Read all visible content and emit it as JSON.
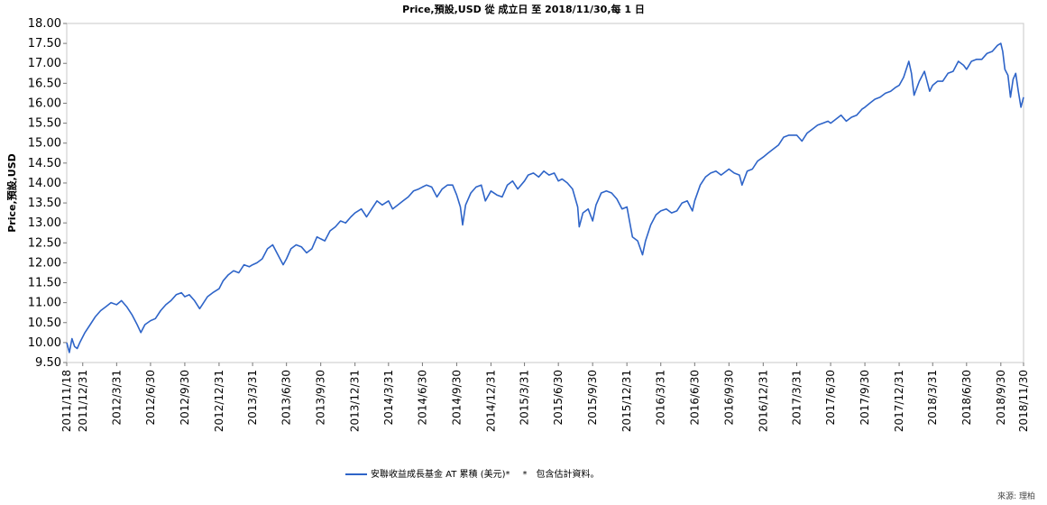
{
  "chart_data": {
    "type": "line",
    "title": "Price,預設,USD 從 成立日 至 2018/11/30,每 1 日",
    "xlabel": "",
    "ylabel": "Price,預設,USD",
    "ylim": [
      9.5,
      18.0
    ],
    "y_ticks": [
      "9.50",
      "10.00",
      "10.50",
      "11.00",
      "11.50",
      "12.00",
      "12.50",
      "13.00",
      "13.50",
      "14.00",
      "14.50",
      "15.00",
      "15.50",
      "16.00",
      "16.50",
      "17.00",
      "17.50",
      "18.00"
    ],
    "x_tick_labels": [
      "2011/11/18",
      "2011/12/31",
      "2012/3/31",
      "2012/6/30",
      "2012/9/30",
      "2012/12/31",
      "2013/3/31",
      "2013/6/30",
      "2013/9/30",
      "2013/12/31",
      "2014/3/31",
      "2014/6/30",
      "2014/9/30",
      "2014/12/31",
      "2015/3/31",
      "2015/6/30",
      "2015/9/30",
      "2015/12/31",
      "2016/3/31",
      "2016/6/30",
      "2016/9/30",
      "2016/12/31",
      "2017/3/31",
      "2017/6/30",
      "2017/9/30",
      "2017/12/31",
      "2018/3/31",
      "2018/6/30",
      "2018/9/30",
      "2018/11/30"
    ],
    "grid": false,
    "legend_position": "bottom",
    "series": [
      {
        "name": "安聯收益成長基金 AT 累積 (美元)*",
        "color": "#2e64c8",
        "points": [
          [
            "2011-11-18",
            10.0
          ],
          [
            "2011-11-25",
            9.75
          ],
          [
            "2011-12-02",
            10.1
          ],
          [
            "2011-12-09",
            9.9
          ],
          [
            "2011-12-16",
            9.85
          ],
          [
            "2011-12-23",
            10.0
          ],
          [
            "2012-01-06",
            10.25
          ],
          [
            "2012-01-20",
            10.45
          ],
          [
            "2012-02-03",
            10.65
          ],
          [
            "2012-02-17",
            10.8
          ],
          [
            "2012-03-02",
            10.9
          ],
          [
            "2012-03-16",
            11.0
          ],
          [
            "2012-03-31",
            10.95
          ],
          [
            "2012-04-13",
            11.05
          ],
          [
            "2012-04-27",
            10.9
          ],
          [
            "2012-05-11",
            10.7
          ],
          [
            "2012-05-25",
            10.45
          ],
          [
            "2012-06-04",
            10.25
          ],
          [
            "2012-06-15",
            10.45
          ],
          [
            "2012-06-30",
            10.55
          ],
          [
            "2012-07-13",
            10.6
          ],
          [
            "2012-07-27",
            10.8
          ],
          [
            "2012-08-10",
            10.95
          ],
          [
            "2012-08-24",
            11.05
          ],
          [
            "2012-09-07",
            11.2
          ],
          [
            "2012-09-21",
            11.25
          ],
          [
            "2012-09-30",
            11.15
          ],
          [
            "2012-10-12",
            11.2
          ],
          [
            "2012-10-26",
            11.05
          ],
          [
            "2012-11-09",
            10.85
          ],
          [
            "2012-11-16",
            10.95
          ],
          [
            "2012-11-30",
            11.15
          ],
          [
            "2012-12-14",
            11.25
          ],
          [
            "2012-12-31",
            11.35
          ],
          [
            "2013-01-11",
            11.55
          ],
          [
            "2013-01-25",
            11.7
          ],
          [
            "2013-02-08",
            11.8
          ],
          [
            "2013-02-22",
            11.75
          ],
          [
            "2013-03-08",
            11.95
          ],
          [
            "2013-03-22",
            11.9
          ],
          [
            "2013-03-31",
            11.95
          ],
          [
            "2013-04-12",
            12.0
          ],
          [
            "2013-04-26",
            12.1
          ],
          [
            "2013-05-10",
            12.35
          ],
          [
            "2013-05-24",
            12.45
          ],
          [
            "2013-06-07",
            12.2
          ],
          [
            "2013-06-21",
            11.95
          ],
          [
            "2013-06-30",
            12.1
          ],
          [
            "2013-07-12",
            12.35
          ],
          [
            "2013-07-26",
            12.45
          ],
          [
            "2013-08-09",
            12.4
          ],
          [
            "2013-08-23",
            12.25
          ],
          [
            "2013-09-06",
            12.35
          ],
          [
            "2013-09-20",
            12.65
          ],
          [
            "2013-09-30",
            12.6
          ],
          [
            "2013-10-11",
            12.55
          ],
          [
            "2013-10-25",
            12.8
          ],
          [
            "2013-11-08",
            12.9
          ],
          [
            "2013-11-22",
            13.05
          ],
          [
            "2013-12-06",
            13.0
          ],
          [
            "2013-12-20",
            13.15
          ],
          [
            "2013-12-31",
            13.25
          ],
          [
            "2014-01-17",
            13.35
          ],
          [
            "2014-01-31",
            13.15
          ],
          [
            "2014-02-14",
            13.35
          ],
          [
            "2014-02-28",
            13.55
          ],
          [
            "2014-03-14",
            13.45
          ],
          [
            "2014-03-31",
            13.55
          ],
          [
            "2014-04-11",
            13.35
          ],
          [
            "2014-04-25",
            13.45
          ],
          [
            "2014-05-09",
            13.55
          ],
          [
            "2014-05-23",
            13.65
          ],
          [
            "2014-06-06",
            13.8
          ],
          [
            "2014-06-20",
            13.85
          ],
          [
            "2014-06-30",
            13.9
          ],
          [
            "2014-07-11",
            13.95
          ],
          [
            "2014-07-25",
            13.9
          ],
          [
            "2014-08-08",
            13.65
          ],
          [
            "2014-08-22",
            13.85
          ],
          [
            "2014-09-05",
            13.95
          ],
          [
            "2014-09-19",
            13.95
          ],
          [
            "2014-09-30",
            13.7
          ],
          [
            "2014-10-10",
            13.4
          ],
          [
            "2014-10-16",
            12.95
          ],
          [
            "2014-10-24",
            13.45
          ],
          [
            "2014-11-07",
            13.75
          ],
          [
            "2014-11-21",
            13.9
          ],
          [
            "2014-12-05",
            13.95
          ],
          [
            "2014-12-16",
            13.55
          ],
          [
            "2014-12-31",
            13.8
          ],
          [
            "2015-01-16",
            13.7
          ],
          [
            "2015-01-30",
            13.65
          ],
          [
            "2015-02-13",
            13.95
          ],
          [
            "2015-02-27",
            14.05
          ],
          [
            "2015-03-13",
            13.85
          ],
          [
            "2015-03-31",
            14.05
          ],
          [
            "2015-04-10",
            14.2
          ],
          [
            "2015-04-24",
            14.25
          ],
          [
            "2015-05-08",
            14.15
          ],
          [
            "2015-05-22",
            14.3
          ],
          [
            "2015-06-05",
            14.2
          ],
          [
            "2015-06-19",
            14.25
          ],
          [
            "2015-06-30",
            14.05
          ],
          [
            "2015-07-10",
            14.1
          ],
          [
            "2015-07-24",
            14.0
          ],
          [
            "2015-08-07",
            13.85
          ],
          [
            "2015-08-21",
            13.4
          ],
          [
            "2015-08-25",
            12.9
          ],
          [
            "2015-09-04",
            13.25
          ],
          [
            "2015-09-18",
            13.35
          ],
          [
            "2015-09-30",
            13.05
          ],
          [
            "2015-10-09",
            13.45
          ],
          [
            "2015-10-23",
            13.75
          ],
          [
            "2015-11-06",
            13.8
          ],
          [
            "2015-11-20",
            13.75
          ],
          [
            "2015-12-04",
            13.6
          ],
          [
            "2015-12-18",
            13.35
          ],
          [
            "2015-12-31",
            13.4
          ],
          [
            "2016-01-15",
            12.65
          ],
          [
            "2016-01-29",
            12.55
          ],
          [
            "2016-02-11",
            12.2
          ],
          [
            "2016-02-19",
            12.55
          ],
          [
            "2016-03-04",
            12.95
          ],
          [
            "2016-03-18",
            13.2
          ],
          [
            "2016-03-31",
            13.3
          ],
          [
            "2016-04-15",
            13.35
          ],
          [
            "2016-04-29",
            13.25
          ],
          [
            "2016-05-13",
            13.3
          ],
          [
            "2016-05-27",
            13.5
          ],
          [
            "2016-06-10",
            13.55
          ],
          [
            "2016-06-24",
            13.3
          ],
          [
            "2016-06-30",
            13.55
          ],
          [
            "2016-07-15",
            13.95
          ],
          [
            "2016-07-29",
            14.15
          ],
          [
            "2016-08-12",
            14.25
          ],
          [
            "2016-08-26",
            14.3
          ],
          [
            "2016-09-09",
            14.2
          ],
          [
            "2016-09-23",
            14.3
          ],
          [
            "2016-09-30",
            14.35
          ],
          [
            "2016-10-14",
            14.25
          ],
          [
            "2016-10-28",
            14.2
          ],
          [
            "2016-11-04",
            13.95
          ],
          [
            "2016-11-18",
            14.3
          ],
          [
            "2016-12-02",
            14.35
          ],
          [
            "2016-12-16",
            14.55
          ],
          [
            "2016-12-31",
            14.65
          ],
          [
            "2017-01-13",
            14.75
          ],
          [
            "2017-01-27",
            14.85
          ],
          [
            "2017-02-10",
            14.95
          ],
          [
            "2017-02-24",
            15.15
          ],
          [
            "2017-03-10",
            15.2
          ],
          [
            "2017-03-31",
            15.2
          ],
          [
            "2017-04-14",
            15.05
          ],
          [
            "2017-04-28",
            15.25
          ],
          [
            "2017-05-12",
            15.35
          ],
          [
            "2017-05-26",
            15.45
          ],
          [
            "2017-06-09",
            15.5
          ],
          [
            "2017-06-23",
            15.55
          ],
          [
            "2017-06-30",
            15.5
          ],
          [
            "2017-07-14",
            15.6
          ],
          [
            "2017-07-28",
            15.7
          ],
          [
            "2017-08-11",
            15.55
          ],
          [
            "2017-08-25",
            15.65
          ],
          [
            "2017-09-08",
            15.7
          ],
          [
            "2017-09-22",
            15.85
          ],
          [
            "2017-09-30",
            15.9
          ],
          [
            "2017-10-13",
            16.0
          ],
          [
            "2017-10-27",
            16.1
          ],
          [
            "2017-11-10",
            16.15
          ],
          [
            "2017-11-24",
            16.25
          ],
          [
            "2017-12-08",
            16.3
          ],
          [
            "2017-12-22",
            16.4
          ],
          [
            "2017-12-31",
            16.45
          ],
          [
            "2018-01-12",
            16.65
          ],
          [
            "2018-01-26",
            17.05
          ],
          [
            "2018-02-02",
            16.75
          ],
          [
            "2018-02-09",
            16.2
          ],
          [
            "2018-02-23",
            16.55
          ],
          [
            "2018-03-09",
            16.8
          ],
          [
            "2018-03-23",
            16.3
          ],
          [
            "2018-03-31",
            16.45
          ],
          [
            "2018-04-13",
            16.55
          ],
          [
            "2018-04-27",
            16.55
          ],
          [
            "2018-05-11",
            16.75
          ],
          [
            "2018-05-25",
            16.8
          ],
          [
            "2018-06-08",
            17.05
          ],
          [
            "2018-06-22",
            16.95
          ],
          [
            "2018-06-30",
            16.85
          ],
          [
            "2018-07-13",
            17.05
          ],
          [
            "2018-07-27",
            17.1
          ],
          [
            "2018-08-10",
            17.1
          ],
          [
            "2018-08-24",
            17.25
          ],
          [
            "2018-09-07",
            17.3
          ],
          [
            "2018-09-21",
            17.45
          ],
          [
            "2018-09-30",
            17.5
          ],
          [
            "2018-10-05",
            17.3
          ],
          [
            "2018-10-11",
            16.85
          ],
          [
            "2018-10-19",
            16.7
          ],
          [
            "2018-10-26",
            16.15
          ],
          [
            "2018-11-02",
            16.6
          ],
          [
            "2018-11-09",
            16.75
          ],
          [
            "2018-11-16",
            16.3
          ],
          [
            "2018-11-23",
            15.9
          ],
          [
            "2018-11-30",
            16.15
          ]
        ]
      }
    ]
  },
  "legend": {
    "series_label": "安聯收益成長基金 AT 累積 (美元)*",
    "note": "*　包含估計資料。"
  },
  "source": "來源: 理柏"
}
